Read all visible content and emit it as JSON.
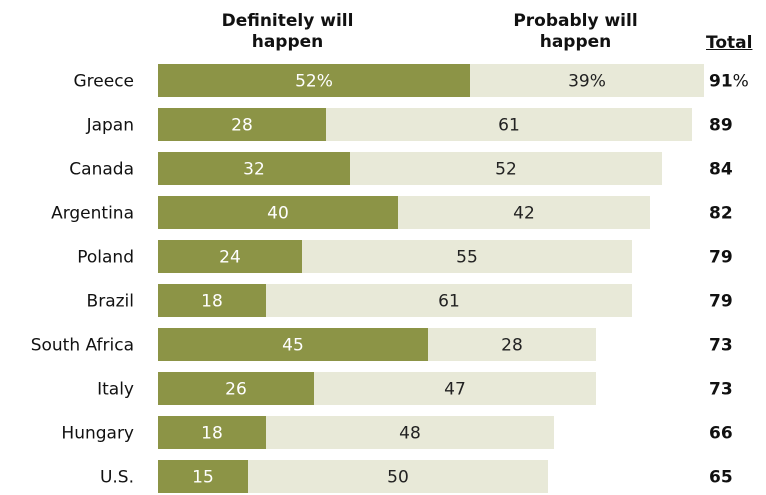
{
  "chart_data": {
    "type": "bar",
    "orientation": "horizontal",
    "stacked": true,
    "categories": [
      "Greece",
      "Japan",
      "Canada",
      "Argentina",
      "Poland",
      "Brazil",
      "South Africa",
      "Italy",
      "Hungary",
      "U.S."
    ],
    "series": [
      {
        "name": "Definitely will happen",
        "color": "#8c9446",
        "values": [
          52,
          28,
          32,
          40,
          24,
          18,
          45,
          26,
          18,
          15
        ],
        "labels": [
          "52%",
          "28",
          "32",
          "40",
          "24",
          "18",
          "45",
          "26",
          "18",
          "15"
        ]
      },
      {
        "name": "Probably will happen",
        "color": "#e8e9d8",
        "values": [
          39,
          61,
          52,
          42,
          55,
          61,
          28,
          47,
          48,
          50
        ],
        "labels": [
          "39%",
          "61",
          "52",
          "42",
          "55",
          "61",
          "28",
          "47",
          "48",
          "50"
        ]
      }
    ],
    "totals": {
      "header": "Total",
      "values": [
        91,
        89,
        84,
        82,
        79,
        79,
        73,
        73,
        66,
        65
      ],
      "labels": [
        "91",
        "89",
        "84",
        "82",
        "79",
        "79",
        "73",
        "73",
        "66",
        "65"
      ],
      "first_suffix": "%"
    },
    "legend_placement": "top",
    "grid": false
  }
}
